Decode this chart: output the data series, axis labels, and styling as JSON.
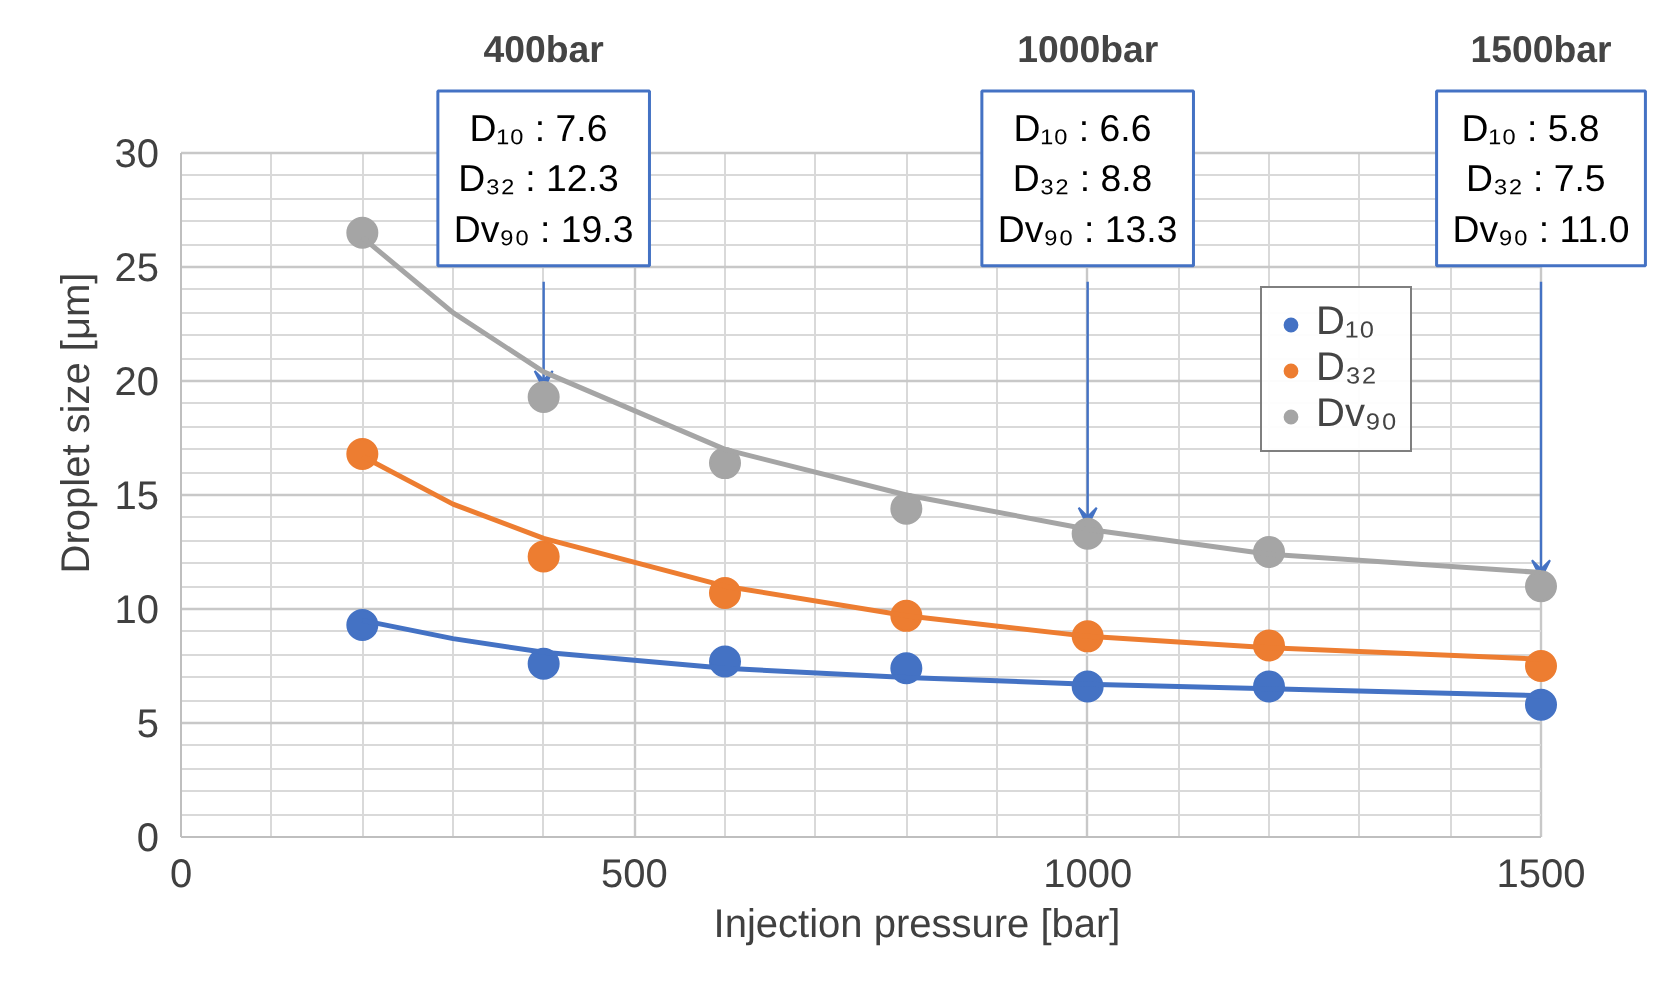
{
  "chart_data": {
    "type": "scatter",
    "xlabel": "Injection pressure [bar]",
    "ylabel": "Droplet size [μm]",
    "x": [
      200,
      400,
      600,
      800,
      1000,
      1200,
      1500
    ],
    "series": [
      {
        "name": "D₁₀",
        "color": "#4472c4",
        "values": [
          9.3,
          7.6,
          7.7,
          7.4,
          6.6,
          6.6,
          5.8
        ]
      },
      {
        "name": "D₃₂",
        "color": "#ed7d31",
        "values": [
          16.8,
          12.3,
          10.7,
          9.7,
          8.8,
          8.4,
          7.5
        ]
      },
      {
        "name": "Dv₉₀",
        "color": "#a5a5a5",
        "values": [
          26.5,
          19.3,
          16.4,
          14.4,
          13.3,
          12.5,
          11.0
        ]
      },
      {
        "type": "line",
        "marker": "none",
        "color": "#4472c4",
        "x": [
          200,
          300,
          400,
          600,
          800,
          1000,
          1200,
          1500
        ],
        "values": [
          9.5,
          8.7,
          8.1,
          7.4,
          7.0,
          6.7,
          6.5,
          6.2
        ]
      },
      {
        "type": "line",
        "marker": "none",
        "color": "#ed7d31",
        "x": [
          200,
          300,
          400,
          600,
          800,
          1000,
          1200,
          1500
        ],
        "values": [
          16.7,
          14.6,
          13.1,
          11.0,
          9.7,
          8.8,
          8.3,
          7.8
        ]
      },
      {
        "type": "line",
        "marker": "none",
        "color": "#a5a5a5",
        "x": [
          200,
          300,
          400,
          600,
          800,
          1000,
          1200,
          1500
        ],
        "values": [
          26.3,
          23.0,
          20.4,
          17.0,
          15.0,
          13.5,
          12.4,
          11.6
        ]
      }
    ],
    "xlim": [
      0,
      1500
    ],
    "xticks": [
      0,
      500,
      1000,
      1500
    ],
    "ylim": [
      0,
      30
    ],
    "yticks": [
      0,
      5,
      10,
      15,
      20,
      25,
      30
    ],
    "grid": true,
    "legend": "right",
    "marker": "circle",
    "annotations": [
      "400bar",
      {
        "text": "D₁₀  : 7.6\nD₃₂  : 12.3\nDv₉₀ : 19.3",
        "x": 400,
        "y": 19.3
      },
      "1000bar",
      {
        "text": "D₁₀  : 6.6\nD₃₂  : 8.8\nDv₉₀ : 13.3",
        "x": 1000,
        "y": 13.3
      },
      "1500bar",
      {
        "text": "D₁₀   : 5.8\nD₃₂  : 7.5\nDv₉₀ : 11.0",
        "x": 1500,
        "y": 11.0
      }
    ]
  }
}
